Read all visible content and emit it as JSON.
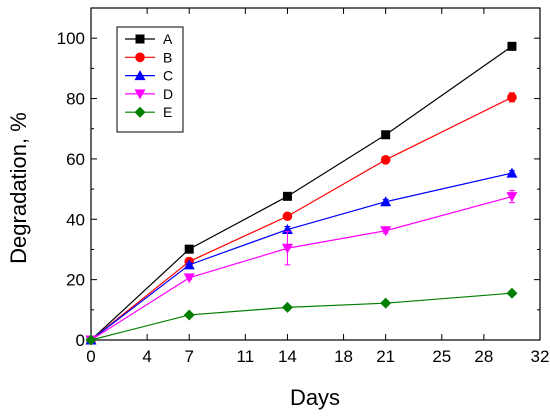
{
  "chart_data": {
    "type": "line",
    "xlabel": "Days",
    "ylabel": "Degradation, %",
    "xlim": [
      0,
      32
    ],
    "ylim": [
      0,
      110
    ],
    "x_ticks": [
      0,
      4,
      7,
      11,
      14,
      18,
      21,
      25,
      28,
      32
    ],
    "y_ticks": [
      0,
      20,
      40,
      60,
      80,
      100
    ],
    "grid": false,
    "legend_position": "top-left",
    "x": [
      0,
      7,
      14,
      21,
      30
    ],
    "series": [
      {
        "name": "A",
        "color": "#000000",
        "marker": "square",
        "values": [
          0,
          30.1,
          47.6,
          68.0,
          97.3
        ],
        "errors": [
          0,
          0.5,
          0.6,
          0.6,
          0.6
        ]
      },
      {
        "name": "B",
        "color": "#ff0000",
        "marker": "circle",
        "values": [
          0,
          26.0,
          41.0,
          59.7,
          80.4
        ],
        "errors": [
          0,
          0.6,
          0.8,
          0.6,
          1.5
        ]
      },
      {
        "name": "C",
        "color": "#0000ff",
        "marker": "triangle-up",
        "values": [
          0,
          24.9,
          36.6,
          45.8,
          55.3
        ],
        "errors": [
          0,
          0.6,
          1.0,
          0.8,
          0.8
        ]
      },
      {
        "name": "D",
        "color": "#ff00ff",
        "marker": "triangle-down",
        "values": [
          0,
          20.6,
          30.4,
          36.2,
          47.5
        ],
        "errors": [
          0,
          0.6,
          5.5,
          0.8,
          2.0
        ]
      },
      {
        "name": "E",
        "color": "#007f00",
        "marker": "diamond",
        "values": [
          0,
          8.3,
          10.8,
          12.2,
          15.5
        ],
        "errors": [
          0,
          0.4,
          0.4,
          0.4,
          0.5
        ]
      }
    ]
  }
}
